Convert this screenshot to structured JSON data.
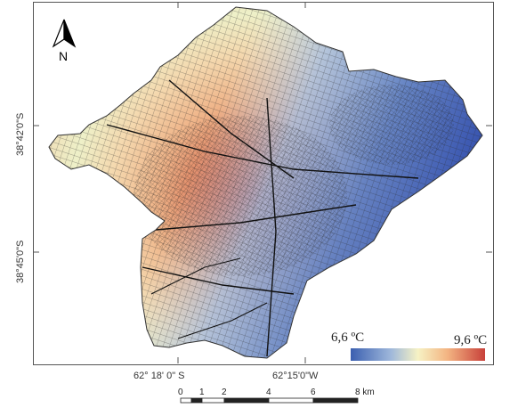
{
  "map": {
    "latitude_labels": [
      "38°42'0\"S",
      "38°45'0\"S"
    ],
    "longitude_labels": [
      "62° 18' 0\" S",
      "62°15'0\"W"
    ]
  },
  "north_arrow": {
    "icon": "north-arrow-icon",
    "letter": "N"
  },
  "legend": {
    "min_label": "6,6 ºC",
    "max_label": "9,6 ºC",
    "colors": [
      "#3b5fb0",
      "#9fb8db",
      "#f6f2c4",
      "#f3b482",
      "#c8413a"
    ]
  },
  "scale_bar": {
    "ticks": [
      "0",
      "1",
      "2",
      "4",
      "6",
      "8"
    ],
    "unit": "km"
  }
}
